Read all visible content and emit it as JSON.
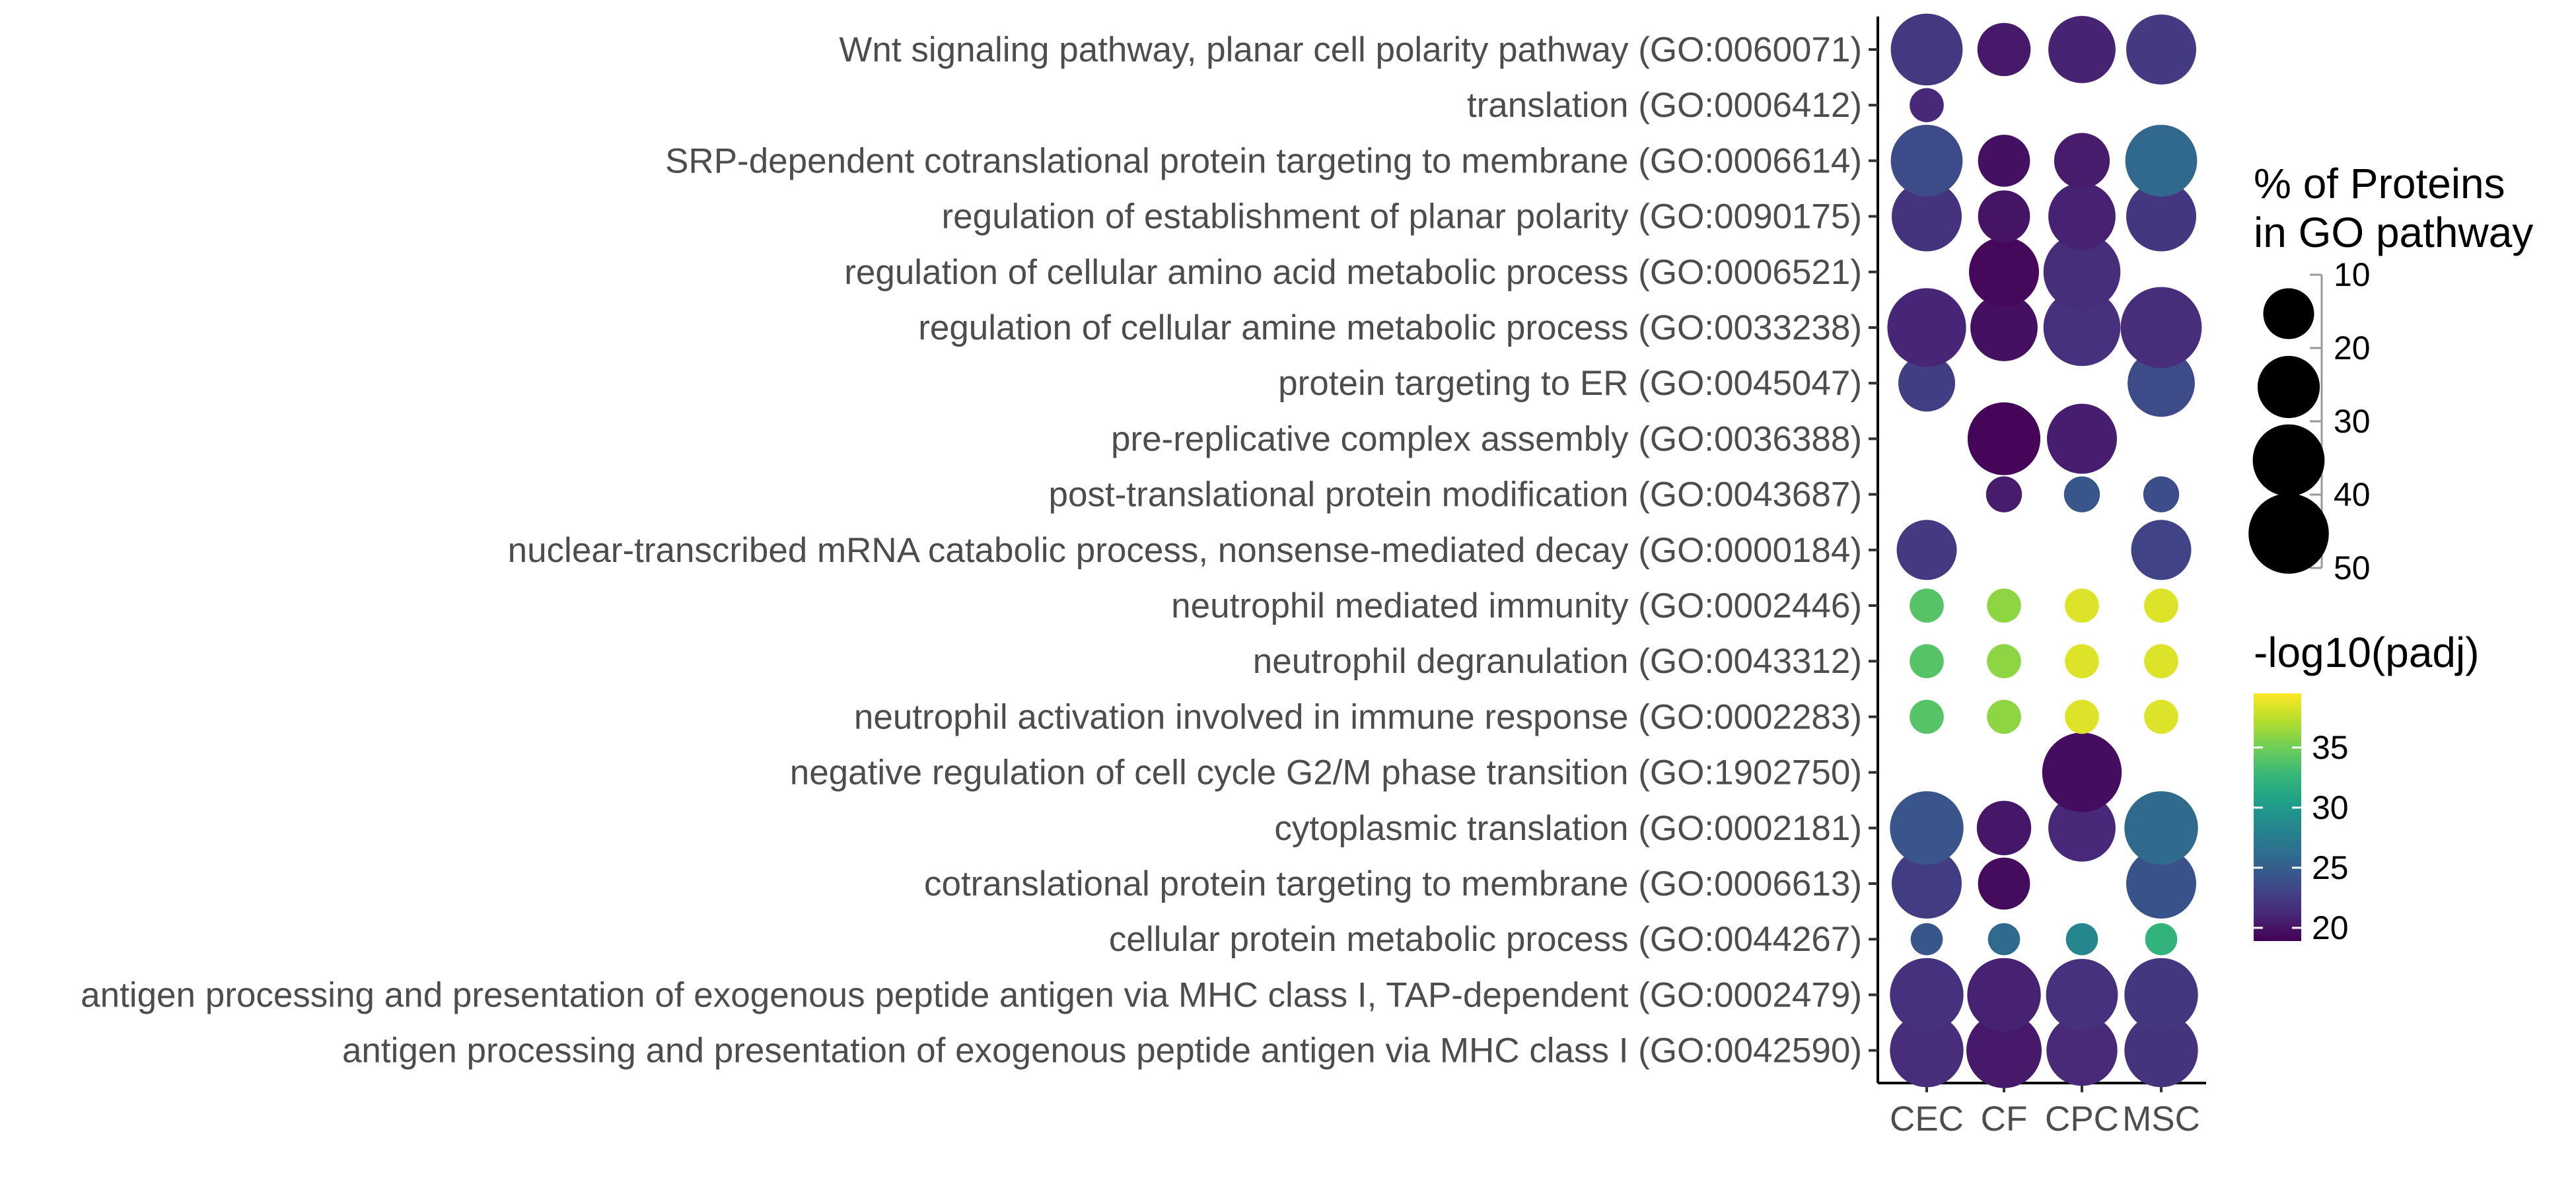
{
  "chart_data": {
    "type": "scatter",
    "subtype": "dot plot",
    "x_categories": [
      "CEC",
      "CF",
      "CPC",
      "MSC"
    ],
    "y_categories": [
      "antigen processing and presentation of exogenous peptide antigen via MHC class I (GO:0042590)",
      "antigen processing and presentation of exogenous peptide antigen via MHC class I, TAP-dependent (GO:0002479)",
      "cellular protein metabolic process (GO:0044267)",
      "cotranslational protein targeting to membrane (GO:0006613)",
      "cytoplasmic translation (GO:0002181)",
      "negative regulation of cell cycle G2/M phase transition (GO:1902750)",
      "neutrophil activation involved in immune response (GO:0002283)",
      "neutrophil degranulation (GO:0043312)",
      "neutrophil mediated immunity (GO:0002446)",
      "nuclear-transcribed mRNA catabolic process, nonsense-mediated decay (GO:0000184)",
      "post-translational protein modification (GO:0043687)",
      "pre-replicative complex assembly (GO:0036388)",
      "protein targeting to ER (GO:0045047)",
      "regulation of cellular amine metabolic process (GO:0033238)",
      "regulation of cellular amino acid metabolic process (GO:0006521)",
      "regulation of establishment of planar polarity (GO:0090175)",
      "SRP-dependent cotranslational protein targeting to membrane (GO:0006614)",
      "translation (GO:0006412)",
      "Wnt signaling pathway, planar cell polarity pathway (GO:0060071)"
    ],
    "points": [
      {
        "x": "CEC",
        "y": 0,
        "size": 42,
        "color": 21.5
      },
      {
        "x": "CF",
        "y": 0,
        "size": 44,
        "color": 20.3
      },
      {
        "x": "CPC",
        "y": 0,
        "size": 39,
        "color": 21.3
      },
      {
        "x": "MSC",
        "y": 0,
        "size": 42,
        "color": 21.9
      },
      {
        "x": "CEC",
        "y": 1,
        "size": 42,
        "color": 21.8
      },
      {
        "x": "CF",
        "y": 1,
        "size": 42,
        "color": 20.8
      },
      {
        "x": "CPC",
        "y": 1,
        "size": 40,
        "color": 21.8
      },
      {
        "x": "MSC",
        "y": 1,
        "size": 42,
        "color": 22.1
      },
      {
        "x": "CEC",
        "y": 2,
        "size": 8,
        "color": 24.4
      },
      {
        "x": "CF",
        "y": 2,
        "size": 8,
        "color": 26.0
      },
      {
        "x": "CPC",
        "y": 2,
        "size": 8,
        "color": 28.5
      },
      {
        "x": "MSC",
        "y": 2,
        "size": 8,
        "color": 32.3
      },
      {
        "x": "CEC",
        "y": 3,
        "size": 38,
        "color": 22.6
      },
      {
        "x": "CF",
        "y": 3,
        "size": 21,
        "color": 19.5
      },
      {
        "x": "MSC",
        "y": 3,
        "size": 38,
        "color": 24.1
      },
      {
        "x": "CEC",
        "y": 4,
        "size": 42,
        "color": 24.3
      },
      {
        "x": "CF",
        "y": 4,
        "size": 23,
        "color": 20.2
      },
      {
        "x": "CPC",
        "y": 4,
        "size": 35,
        "color": 21.2
      },
      {
        "x": "MSC",
        "y": 4,
        "size": 42,
        "color": 26.0
      },
      {
        "x": "CPC",
        "y": 5,
        "size": 49,
        "color": 19.6
      },
      {
        "x": "CEC",
        "y": 6,
        "size": 9,
        "color": 34.0
      },
      {
        "x": "CF",
        "y": 6,
        "size": 9,
        "color": 36.0
      },
      {
        "x": "CPC",
        "y": 6,
        "size": 9,
        "color": 38.5
      },
      {
        "x": "MSC",
        "y": 6,
        "size": 9,
        "color": 38.5
      },
      {
        "x": "CEC",
        "y": 7,
        "size": 9,
        "color": 34.0
      },
      {
        "x": "CF",
        "y": 7,
        "size": 9,
        "color": 36.0
      },
      {
        "x": "CPC",
        "y": 7,
        "size": 9,
        "color": 38.5
      },
      {
        "x": "MSC",
        "y": 7,
        "size": 9,
        "color": 38.5
      },
      {
        "x": "CEC",
        "y": 8,
        "size": 9,
        "color": 34.0
      },
      {
        "x": "CF",
        "y": 8,
        "size": 9,
        "color": 36.0
      },
      {
        "x": "CPC",
        "y": 8,
        "size": 9,
        "color": 38.5
      },
      {
        "x": "MSC",
        "y": 8,
        "size": 9,
        "color": 38.5
      },
      {
        "x": "CEC",
        "y": 9,
        "size": 28,
        "color": 22.4
      },
      {
        "x": "MSC",
        "y": 9,
        "size": 28,
        "color": 23.0
      },
      {
        "x": "CF",
        "y": 10,
        "size": 10,
        "color": 20.5
      },
      {
        "x": "CPC",
        "y": 10,
        "size": 10,
        "color": 24.4
      },
      {
        "x": "MSC",
        "y": 10,
        "size": 10,
        "color": 23.7
      },
      {
        "x": "CF",
        "y": 11,
        "size": 41,
        "color": 19.2
      },
      {
        "x": "CPC",
        "y": 11,
        "size": 38,
        "color": 20.6
      },
      {
        "x": "CEC",
        "y": 12,
        "size": 25,
        "color": 22.7
      },
      {
        "x": "MSC",
        "y": 12,
        "size": 35,
        "color": 23.6
      },
      {
        "x": "CEC",
        "y": 13,
        "size": 48,
        "color": 21.1
      },
      {
        "x": "CF",
        "y": 13,
        "size": 35,
        "color": 19.8
      },
      {
        "x": "CPC",
        "y": 13,
        "size": 46,
        "color": 21.8
      },
      {
        "x": "MSC",
        "y": 13,
        "size": 51,
        "color": 21.5
      },
      {
        "x": "CF",
        "y": 14,
        "size": 38,
        "color": 19.3
      },
      {
        "x": "CPC",
        "y": 14,
        "size": 46,
        "color": 21.6
      },
      {
        "x": "CEC",
        "y": 15,
        "size": 38,
        "color": 21.9
      },
      {
        "x": "CF",
        "y": 15,
        "size": 21,
        "color": 20.0
      },
      {
        "x": "CPC",
        "y": 15,
        "size": 35,
        "color": 20.8
      },
      {
        "x": "MSC",
        "y": 15,
        "size": 38,
        "color": 22.2
      },
      {
        "x": "CEC",
        "y": 16,
        "size": 40,
        "color": 23.6
      },
      {
        "x": "CF",
        "y": 16,
        "size": 21,
        "color": 19.8
      },
      {
        "x": "CPC",
        "y": 16,
        "size": 24,
        "color": 20.5
      },
      {
        "x": "MSC",
        "y": 16,
        "size": 40,
        "color": 25.8
      },
      {
        "x": "CEC",
        "y": 17,
        "size": 9,
        "color": 21.2
      },
      {
        "x": "CEC",
        "y": 18,
        "size": 40,
        "color": 22.3
      },
      {
        "x": "CF",
        "y": 18,
        "size": 22,
        "color": 20.3
      },
      {
        "x": "CPC",
        "y": 18,
        "size": 35,
        "color": 20.9
      },
      {
        "x": "MSC",
        "y": 18,
        "size": 38,
        "color": 22.4
      }
    ],
    "size_legend": {
      "title_lines": [
        "% of Proteins",
        " in GO pathway"
      ],
      "breaks": [
        10,
        20,
        30,
        40,
        50
      ],
      "keys": [
        20,
        30,
        40,
        50
      ]
    },
    "color_legend": {
      "title": "-log10(padj)",
      "breaks": [
        20,
        25,
        30,
        35
      ],
      "range": [
        18.9,
        39.5
      ],
      "palette": [
        "#440154",
        "#482878",
        "#3E4A89",
        "#31688E",
        "#26828E",
        "#1F9E89",
        "#35B779",
        "#6DCD59",
        "#B4DE2C",
        "#FDE725"
      ]
    },
    "xlabel": "",
    "ylabel": "",
    "grid": false,
    "legend_position": "right"
  }
}
